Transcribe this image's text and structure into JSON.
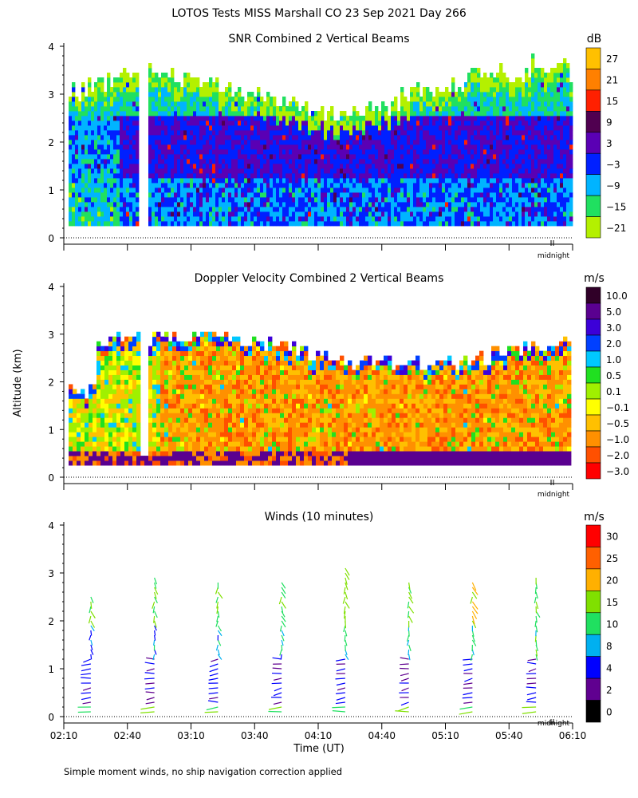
{
  "title": "LOTOS Tests MISS Marshall CO  23 Sep 2021 Day 266",
  "ylabel": "Altitude (km)",
  "xlabel": "Time (UT)",
  "footnote": "Simple moment winds, no ship navigation correction applied",
  "midnight_label": "midnight",
  "chart_data": [
    {
      "type": "heatmap",
      "title": "SNR Combined 2 Vertical Beams",
      "ylabel": "Altitude (km)",
      "y_ticks": [
        0,
        1,
        2,
        3,
        4
      ],
      "ylim": [
        0,
        4
      ],
      "x_ticks": [
        "02:10",
        "02:40",
        "03:10",
        "03:40",
        "04:10",
        "04:40",
        "05:10",
        "05:40",
        "06:10"
      ],
      "x_tick_hours": [
        2.1667,
        2.6667,
        3.1667,
        3.6667,
        4.1667,
        4.6667,
        5.1667,
        5.6667,
        6.1667
      ],
      "xlim_hours": [
        2.1667,
        6.1667
      ],
      "colorbar": {
        "unit": "dB",
        "labels": [
          "27",
          "21",
          "15",
          "9",
          "3",
          "−3",
          "−9",
          "−15",
          "−21"
        ],
        "colors": [
          "#ffc000",
          "#ff8000",
          "#ff2000",
          "#500050",
          "#5a00b4",
          "#0020ff",
          "#00b4ff",
          "#20e060",
          "#b4f000"
        ]
      },
      "data_extent_km": [
        0.25,
        3.2
      ],
      "dominant_levels": {
        "below_1km": "-9 to 3 dB",
        "1_to_2_5km": "-3 to 9 dB",
        "above_2_5km": "-21 to -9 dB"
      }
    },
    {
      "type": "heatmap",
      "title": "Doppler Velocity Combined 2 Vertical Beams",
      "ylabel": "Altitude (km)",
      "y_ticks": [
        0,
        1,
        2,
        3,
        4
      ],
      "ylim": [
        0,
        4
      ],
      "colorbar": {
        "unit": "m/s",
        "labels": [
          "10.0",
          "5.0",
          "3.0",
          "2.0",
          "1.0",
          "0.5",
          "0.1",
          "−0.1",
          "−0.5",
          "−1.0",
          "−2.0",
          "−3.0"
        ],
        "colors": [
          "#300028",
          "#5a0090",
          "#3c00d8",
          "#0040ff",
          "#00c8ff",
          "#20e020",
          "#a0f000",
          "#ffff00",
          "#ffc000",
          "#ff9000",
          "#ff5000",
          "#ff0000"
        ]
      },
      "data_extent_km": [
        0.25,
        3.0
      ],
      "dominant_levels": {
        "0_3_to_2_8km": "-1.0 to 0.1 m/s",
        "near_0_4km": "5.0 to 10.0 m/s"
      }
    },
    {
      "type": "scatter",
      "title": "Winds (10 minutes)",
      "ylabel": "Altitude (km)",
      "y_ticks": [
        0,
        1,
        2,
        3,
        4
      ],
      "ylim": [
        0,
        4
      ],
      "profile_times": [
        "02:25",
        "02:55",
        "03:25",
        "03:55",
        "04:25",
        "04:55",
        "05:25",
        "05:55"
      ],
      "profile_hours": [
        2.4167,
        2.9167,
        3.4167,
        3.9167,
        4.4167,
        4.9167,
        5.4167,
        5.9167
      ],
      "profile_top_km": [
        2.55,
        3.0,
        2.9,
        2.85,
        3.2,
        2.85,
        2.9,
        2.95
      ],
      "colorbar": {
        "unit": "m/s",
        "labels": [
          "30",
          "25",
          "20",
          "15",
          "10",
          "8",
          "4",
          "2",
          "0"
        ],
        "colors": [
          "#ff0000",
          "#ff6000",
          "#ffb000",
          "#80e000",
          "#20e060",
          "#00b0f0",
          "#0000ff",
          "#600090",
          "#000000"
        ]
      }
    }
  ]
}
